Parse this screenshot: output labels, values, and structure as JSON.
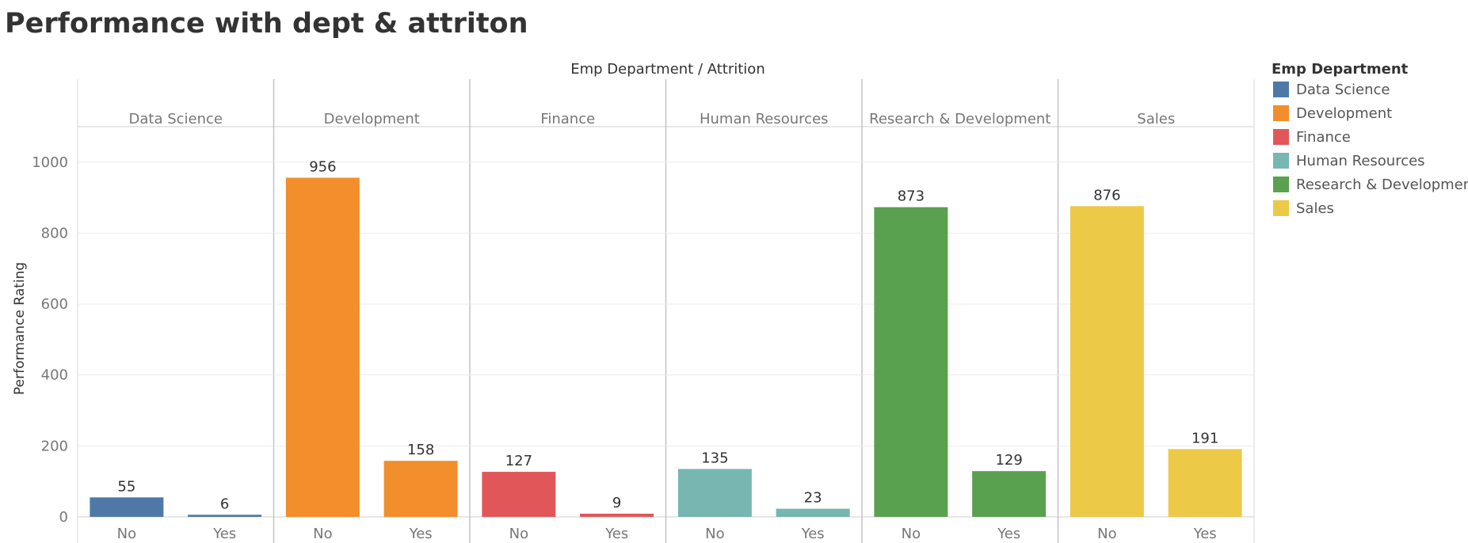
{
  "title": "Performance with dept & attriton",
  "header_label": "Emp Department  /  Attrition",
  "legend": {
    "title": "Emp Department",
    "items": [
      {
        "label": "Data Science",
        "color": "#4e79a7"
      },
      {
        "label": "Development",
        "color": "#f28e2b"
      },
      {
        "label": "Finance",
        "color": "#e15759"
      },
      {
        "label": "Human Resources",
        "color": "#76b7b2"
      },
      {
        "label": "Research & Development",
        "color": "#59a14f"
      },
      {
        "label": "Sales",
        "color": "#edc948"
      }
    ]
  },
  "chart_data": {
    "type": "bar",
    "ylabel": "Performance Rating",
    "ylim": [
      0,
      1100
    ],
    "yticks": [
      0,
      200,
      400,
      600,
      800,
      1000
    ],
    "grid": true,
    "legend_position": "right",
    "groups": [
      {
        "name": "Data Science",
        "color": "#4e79a7",
        "categories": [
          "No",
          "Yes"
        ],
        "values": [
          55,
          6
        ]
      },
      {
        "name": "Development",
        "color": "#f28e2b",
        "categories": [
          "No",
          "Yes"
        ],
        "values": [
          956,
          158
        ]
      },
      {
        "name": "Finance",
        "color": "#e15759",
        "categories": [
          "No",
          "Yes"
        ],
        "values": [
          127,
          9
        ]
      },
      {
        "name": "Human Resources",
        "color": "#76b7b2",
        "categories": [
          "No",
          "Yes"
        ],
        "values": [
          135,
          23
        ]
      },
      {
        "name": "Research & Development",
        "color": "#59a14f",
        "categories": [
          "No",
          "Yes"
        ],
        "values": [
          873,
          129
        ]
      },
      {
        "name": "Sales",
        "color": "#edc948",
        "categories": [
          "No",
          "Yes"
        ],
        "values": [
          876,
          191
        ]
      }
    ]
  }
}
